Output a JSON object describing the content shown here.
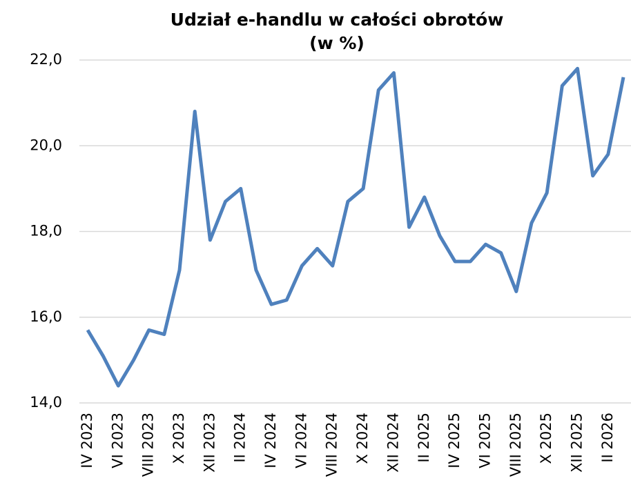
{
  "chart_data": {
    "type": "line",
    "title": "Udział e-handlu w całości obrotów",
    "subtitle": "(w %)",
    "categories": [
      "IV 2023",
      null,
      "VI 2023",
      null,
      "VIII 2023",
      null,
      "X 2023",
      null,
      "XII 2023",
      null,
      "II 2024",
      null,
      "IV 2024",
      null,
      "VI 2024",
      null,
      "VIII 2024",
      null,
      "X 2024",
      null,
      "XII 2024",
      null,
      "II 2025",
      null,
      "IV 2025",
      null,
      "VI 2025",
      null,
      "VIII 2025",
      null,
      "X 2025",
      null,
      "XII 2025",
      null,
      "II 2026",
      null
    ],
    "series": [
      {
        "color": "#4f81bd",
        "values": [
          15.7,
          15.1,
          14.4,
          15.0,
          15.7,
          15.6,
          17.1,
          20.8,
          17.8,
          18.7,
          19.0,
          17.1,
          16.3,
          16.4,
          17.2,
          17.6,
          17.2,
          18.7,
          19.0,
          21.3,
          21.7,
          18.1,
          18.8,
          17.9,
          17.3,
          17.3,
          17.7,
          17.5,
          16.6,
          18.2,
          18.9,
          21.4,
          21.8,
          19.3,
          19.8,
          21.6
        ]
      }
    ],
    "ylim": [
      14,
      22
    ],
    "yticks": [
      {
        "value": 14,
        "label": "14,0"
      },
      {
        "value": 16,
        "label": "16,0"
      },
      {
        "value": 18,
        "label": "18,0"
      },
      {
        "value": 20,
        "label": "20,0"
      },
      {
        "value": 22,
        "label": "22,0"
      }
    ],
    "grid": true
  }
}
